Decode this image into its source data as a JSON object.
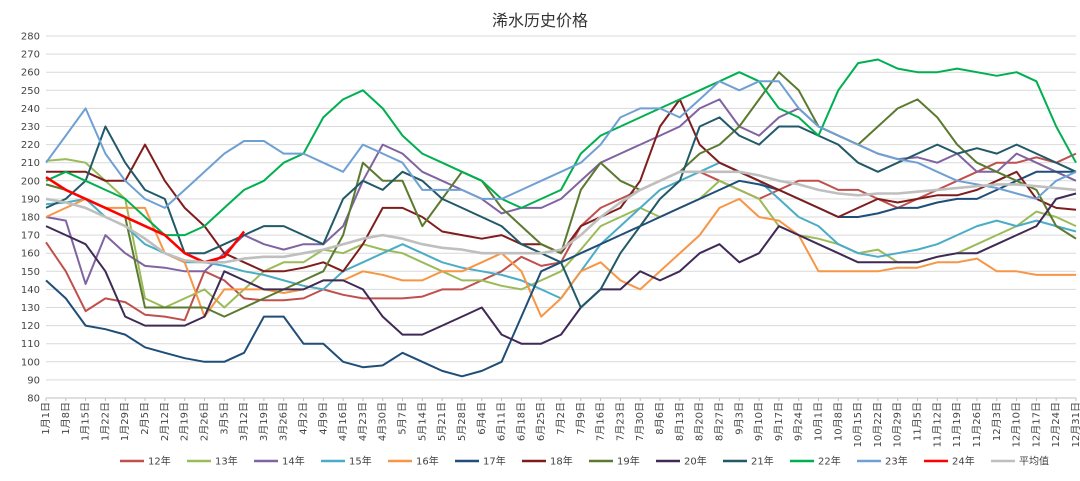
{
  "chart_data": {
    "type": "line",
    "title": "浠水历史价格",
    "ylim": [
      80,
      280
    ],
    "yticks": [
      80,
      90,
      100,
      110,
      120,
      130,
      140,
      150,
      160,
      170,
      180,
      190,
      200,
      210,
      220,
      230,
      240,
      250,
      260,
      270,
      280
    ],
    "xticks": [
      "1月1日",
      "1月8日",
      "1月15日",
      "1月22日",
      "1月29日",
      "2月5日",
      "2月12日",
      "2月19日",
      "2月26日",
      "3月5日",
      "3月12日",
      "3月19日",
      "3月26日",
      "4月2日",
      "4月9日",
      "4月16日",
      "4月23日",
      "4月30日",
      "5月7日",
      "5月14日",
      "5月21日",
      "5月28日",
      "6月4日",
      "6月11日",
      "6月18日",
      "6月25日",
      "7月2日",
      "7月9日",
      "7月16日",
      "7月23日",
      "7月30日",
      "8月6日",
      "8月13日",
      "8月20日",
      "8月27日",
      "9月3日",
      "9月10日",
      "9月17日",
      "9月24日",
      "10月1日",
      "10月8日",
      "10月15日",
      "10月22日",
      "10月29日",
      "11月5日",
      "11月12日",
      "11月19日",
      "11月26日",
      "12月3日",
      "12月10日",
      "12月17日",
      "12月24日",
      "12月31日"
    ],
    "grid": true,
    "legend_position": "bottom",
    "series": [
      {
        "name": "12年",
        "color": "#c0504d",
        "values": [
          166,
          150,
          128,
          135,
          133,
          126,
          125,
          123,
          150,
          145,
          135,
          134,
          134,
          135,
          140,
          137,
          135,
          135,
          135,
          136,
          140,
          140,
          145,
          150,
          158,
          153,
          155,
          175,
          185,
          190,
          195,
          200,
          205,
          205,
          200,
          195,
          190,
          195,
          200,
          200,
          195,
          195,
          190,
          185,
          190,
          195,
          200,
          205,
          210,
          210,
          213,
          210,
          215
        ]
      },
      {
        "name": "13年",
        "color": "#9bbb59",
        "values": [
          211,
          212,
          210,
          200,
          190,
          135,
          130,
          135,
          140,
          130,
          140,
          150,
          155,
          155,
          162,
          160,
          165,
          162,
          160,
          155,
          150,
          145,
          145,
          142,
          140,
          145,
          150,
          162,
          175,
          180,
          185,
          180,
          185,
          190,
          200,
          195,
          190,
          175,
          170,
          168,
          165,
          160,
          162,
          155,
          155,
          158,
          160,
          165,
          170,
          175,
          183,
          180,
          175
        ]
      },
      {
        "name": "14年",
        "color": "#8064a2",
        "values": [
          180,
          178,
          143,
          170,
          160,
          153,
          152,
          150,
          150,
          160,
          170,
          165,
          162,
          165,
          165,
          175,
          200,
          220,
          215,
          205,
          200,
          195,
          190,
          182,
          185,
          185,
          190,
          200,
          210,
          215,
          220,
          225,
          230,
          240,
          245,
          230,
          225,
          235,
          240,
          230,
          225,
          220,
          215,
          212,
          213,
          210,
          215,
          205,
          205,
          215,
          210,
          205,
          200
        ]
      },
      {
        "name": "15年",
        "color": "#4bacc6",
        "values": [
          187,
          188,
          190,
          180,
          175,
          165,
          160,
          155,
          155,
          153,
          150,
          148,
          145,
          142,
          140,
          150,
          155,
          160,
          165,
          160,
          155,
          152,
          150,
          148,
          145,
          140,
          135,
          150,
          165,
          175,
          185,
          195,
          200,
          205,
          210,
          205,
          200,
          190,
          180,
          175,
          165,
          160,
          158,
          160,
          162,
          165,
          170,
          175,
          178,
          175,
          178,
          175,
          172
        ]
      },
      {
        "name": "16年",
        "color": "#f79646",
        "values": [
          180,
          185,
          190,
          185,
          185,
          185,
          160,
          155,
          125,
          140,
          140,
          140,
          138,
          140,
          145,
          145,
          150,
          148,
          145,
          145,
          150,
          150,
          155,
          160,
          150,
          125,
          135,
          150,
          155,
          145,
          140,
          150,
          160,
          170,
          185,
          190,
          180,
          178,
          170,
          150,
          150,
          150,
          150,
          152,
          152,
          155,
          155,
          157,
          150,
          150,
          148,
          148,
          148
        ]
      },
      {
        "name": "17年",
        "color": "#1f4e79",
        "values": [
          145,
          135,
          120,
          118,
          115,
          108,
          105,
          102,
          100,
          100,
          105,
          125,
          125,
          110,
          110,
          100,
          97,
          98,
          105,
          100,
          95,
          92,
          95,
          100,
          125,
          150,
          155,
          160,
          165,
          170,
          175,
          180,
          185,
          190,
          195,
          200,
          198,
          195,
          190,
          185,
          180,
          180,
          182,
          185,
          185,
          188,
          190,
          190,
          195,
          200,
          205,
          205,
          205
        ]
      },
      {
        "name": "18年",
        "color": "#7f1d1d",
        "values": [
          205,
          205,
          205,
          200,
          200,
          220,
          200,
          185,
          175,
          160,
          155,
          150,
          150,
          152,
          155,
          150,
          165,
          185,
          185,
          180,
          172,
          170,
          168,
          170,
          165,
          165,
          160,
          175,
          180,
          185,
          200,
          230,
          245,
          220,
          210,
          205,
          200,
          195,
          190,
          185,
          180,
          185,
          190,
          188,
          190,
          192,
          192,
          195,
          200,
          205,
          190,
          185,
          184
        ]
      },
      {
        "name": "19年",
        "color": "#5b7a30",
        "values": [
          198,
          195,
          190,
          185,
          180,
          130,
          130,
          130,
          130,
          125,
          130,
          135,
          140,
          145,
          150,
          170,
          210,
          200,
          200,
          175,
          190,
          205,
          200,
          185,
          175,
          165,
          160,
          195,
          210,
          200,
          195,
          200,
          205,
          215,
          220,
          230,
          245,
          260,
          250,
          230,
          225,
          220,
          230,
          240,
          245,
          235,
          220,
          210,
          205,
          200,
          195,
          175,
          168
        ]
      },
      {
        "name": "20年",
        "color": "#3f2a56",
        "values": [
          175,
          170,
          165,
          150,
          125,
          120,
          120,
          120,
          125,
          150,
          145,
          140,
          140,
          140,
          145,
          145,
          140,
          125,
          115,
          115,
          120,
          125,
          130,
          115,
          110,
          110,
          115,
          130,
          140,
          140,
          150,
          145,
          150,
          160,
          165,
          155,
          160,
          175,
          170,
          165,
          160,
          155,
          155,
          155,
          155,
          158,
          160,
          160,
          165,
          170,
          175,
          190,
          193
        ]
      },
      {
        "name": "21年",
        "color": "#215968",
        "values": [
          185,
          190,
          200,
          230,
          210,
          195,
          190,
          160,
          160,
          165,
          170,
          175,
          175,
          170,
          165,
          190,
          200,
          195,
          205,
          200,
          190,
          185,
          180,
          175,
          165,
          160,
          155,
          130,
          140,
          160,
          175,
          190,
          200,
          230,
          235,
          225,
          220,
          230,
          230,
          225,
          220,
          210,
          205,
          210,
          215,
          220,
          215,
          218,
          215,
          220,
          215,
          210,
          205
        ]
      },
      {
        "name": "22年",
        "color": "#00b050",
        "values": [
          200,
          205,
          200,
          195,
          190,
          180,
          170,
          170,
          175,
          185,
          195,
          200,
          210,
          215,
          235,
          245,
          250,
          240,
          225,
          215,
          210,
          205,
          200,
          190,
          185,
          190,
          195,
          215,
          225,
          230,
          235,
          240,
          245,
          250,
          255,
          260,
          255,
          240,
          235,
          225,
          250,
          265,
          267,
          262,
          260,
          260,
          262,
          260,
          258,
          260,
          255,
          230,
          210
        ]
      },
      {
        "name": "23年",
        "color": "#6fa0d4",
        "values": [
          210,
          225,
          240,
          215,
          200,
          190,
          185,
          195,
          205,
          215,
          222,
          222,
          215,
          215,
          210,
          205,
          220,
          215,
          210,
          195,
          195,
          195,
          190,
          190,
          195,
          200,
          205,
          210,
          220,
          235,
          240,
          240,
          235,
          245,
          255,
          250,
          255,
          255,
          240,
          230,
          225,
          220,
          215,
          212,
          210,
          205,
          200,
          198,
          196,
          193,
          190,
          200,
          205
        ]
      },
      {
        "name": "24年",
        "color": "#ff0000",
        "values": [
          202,
          195,
          190,
          185,
          180,
          175,
          170,
          160,
          155,
          158,
          172
        ]
      },
      {
        "name": "平均值",
        "color": "#bfbfbf",
        "values": [
          190,
          188,
          185,
          180,
          175,
          168,
          160,
          156,
          155,
          155,
          157,
          158,
          158,
          160,
          162,
          165,
          168,
          170,
          168,
          165,
          163,
          162,
          160,
          160,
          160,
          160,
          162,
          170,
          180,
          188,
          195,
          200,
          205,
          205,
          205,
          205,
          203,
          200,
          198,
          195,
          193,
          192,
          193,
          193,
          194,
          195,
          196,
          197,
          198,
          198,
          197,
          196,
          195
        ]
      }
    ]
  }
}
